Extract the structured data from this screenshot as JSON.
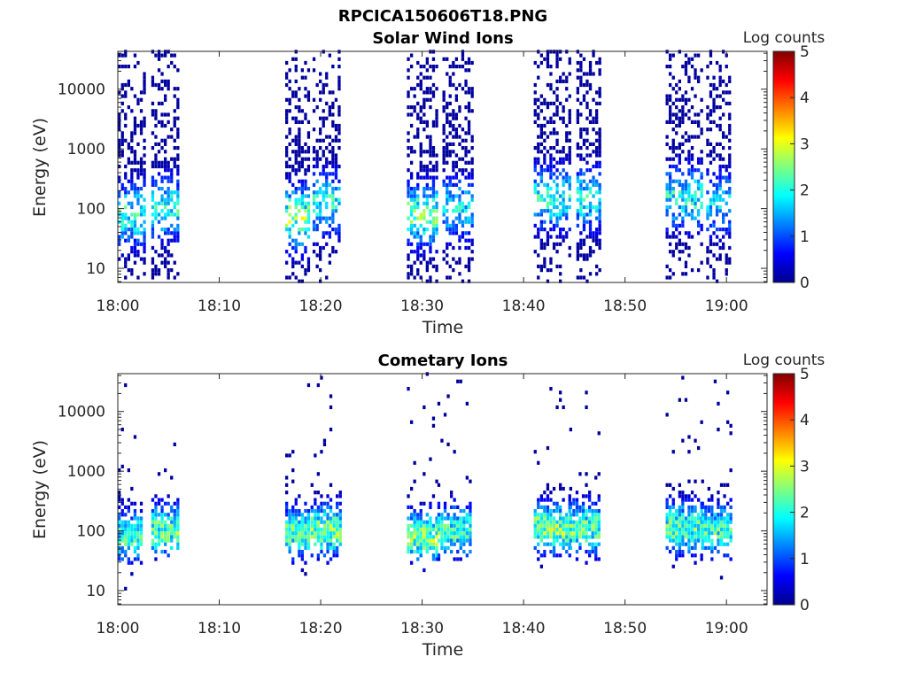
{
  "figure": {
    "title": "RPCICA150606T18.PNG"
  },
  "chart_data": [
    {
      "type": "heatmap",
      "title": "Solar Wind Ions",
      "xlabel": "Time",
      "ylabel": "Energy (eV)",
      "x_ticks": [
        "18:00",
        "18:10",
        "18:20",
        "18:30",
        "18:40",
        "18:50",
        "19:00"
      ],
      "x_range_minutes": [
        0,
        64
      ],
      "y_ticks": [
        {
          "value": 10,
          "label": "10"
        },
        {
          "value": 100,
          "label": "100"
        },
        {
          "value": 1000,
          "label": "1000"
        },
        {
          "value": 10000,
          "label": "10000"
        }
      ],
      "y_range": [
        5.8,
        43000
      ],
      "y_scale": "log",
      "colorbar": {
        "label": "Log counts",
        "range": [
          0,
          5
        ],
        "ticks": [
          "0",
          "1",
          "2",
          "3",
          "4",
          "5"
        ],
        "colormap": "jet"
      },
      "bursts": [
        {
          "start_min": 0.0,
          "end_min": 2.6,
          "peak_energy_ev": 80,
          "peak_log_counts": 2.3
        },
        {
          "start_min": 3.3,
          "end_min": 5.8,
          "peak_energy_ev": 100,
          "peak_log_counts": 2.2
        },
        {
          "start_min": 16.5,
          "end_min": 18.8,
          "peak_energy_ev": 70,
          "peak_log_counts": 2.8
        },
        {
          "start_min": 19.2,
          "end_min": 21.8,
          "peak_energy_ev": 120,
          "peak_log_counts": 2.2
        },
        {
          "start_min": 28.5,
          "end_min": 31.3,
          "peak_energy_ev": 80,
          "peak_log_counts": 2.6
        },
        {
          "start_min": 32.0,
          "end_min": 34.8,
          "peak_energy_ev": 100,
          "peak_log_counts": 2.0
        },
        {
          "start_min": 41.0,
          "end_min": 44.7,
          "peak_energy_ev": 150,
          "peak_log_counts": 2.2
        },
        {
          "start_min": 45.2,
          "end_min": 47.5,
          "peak_energy_ev": 150,
          "peak_log_counts": 2.1
        },
        {
          "start_min": 54.0,
          "end_min": 57.7,
          "peak_energy_ev": 150,
          "peak_log_counts": 2.2
        },
        {
          "start_min": 58.0,
          "end_min": 60.2,
          "peak_energy_ev": 120,
          "peak_log_counts": 1.9
        }
      ]
    },
    {
      "type": "heatmap",
      "title": "Cometary Ions",
      "xlabel": "Time",
      "ylabel": "Energy (eV)",
      "x_ticks": [
        "18:00",
        "18:10",
        "18:20",
        "18:30",
        "18:40",
        "18:50",
        "19:00"
      ],
      "x_range_minutes": [
        0,
        64
      ],
      "y_ticks": [
        {
          "value": 10,
          "label": "10"
        },
        {
          "value": 100,
          "label": "100"
        },
        {
          "value": 1000,
          "label": "1000"
        },
        {
          "value": 10000,
          "label": "10000"
        }
      ],
      "y_range": [
        5.8,
        43000
      ],
      "y_scale": "log",
      "colorbar": {
        "label": "Log counts",
        "range": [
          0,
          5
        ],
        "ticks": [
          "0",
          "1",
          "2",
          "3",
          "4",
          "5"
        ],
        "colormap": "jet"
      },
      "bursts": [
        {
          "start_min": 0.0,
          "end_min": 2.3,
          "peak_energy_ev": 80,
          "peak_log_counts": 2.4
        },
        {
          "start_min": 3.3,
          "end_min": 5.8,
          "peak_energy_ev": 100,
          "peak_log_counts": 2.6
        },
        {
          "start_min": 16.5,
          "end_min": 18.8,
          "peak_energy_ev": 90,
          "peak_log_counts": 2.6
        },
        {
          "start_min": 19.0,
          "end_min": 21.8,
          "peak_energy_ev": 100,
          "peak_log_counts": 2.8
        },
        {
          "start_min": 28.5,
          "end_min": 31.3,
          "peak_energy_ev": 80,
          "peak_log_counts": 2.8
        },
        {
          "start_min": 31.5,
          "end_min": 34.8,
          "peak_energy_ev": 100,
          "peak_log_counts": 2.4
        },
        {
          "start_min": 41.0,
          "end_min": 44.5,
          "peak_energy_ev": 110,
          "peak_log_counts": 2.9
        },
        {
          "start_min": 44.5,
          "end_min": 47.5,
          "peak_energy_ev": 110,
          "peak_log_counts": 2.6
        },
        {
          "start_min": 54.0,
          "end_min": 57.5,
          "peak_energy_ev": 110,
          "peak_log_counts": 2.6
        },
        {
          "start_min": 57.5,
          "end_min": 60.3,
          "peak_energy_ev": 100,
          "peak_log_counts": 2.4
        }
      ]
    }
  ]
}
